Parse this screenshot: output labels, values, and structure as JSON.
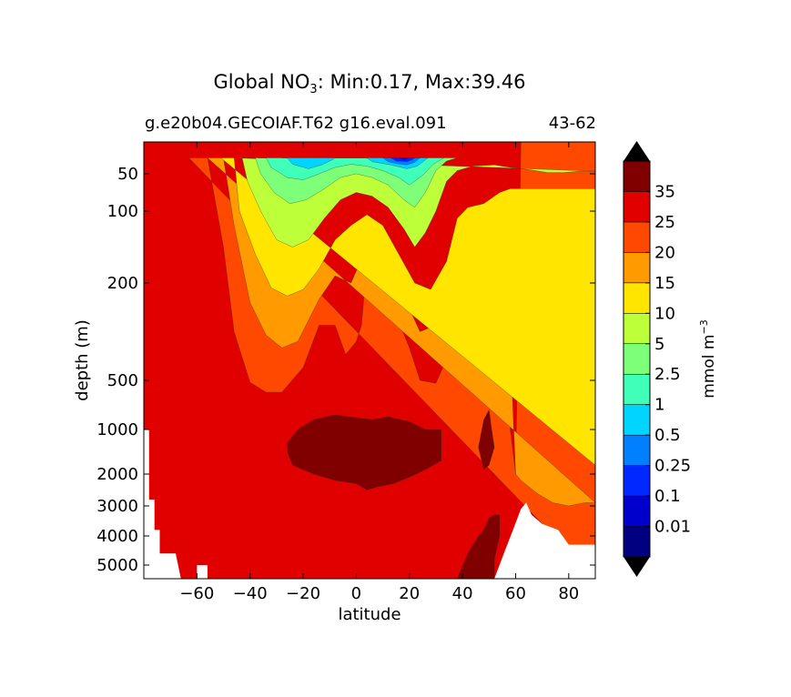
{
  "chart_data": {
    "type": "heatmap",
    "title": {
      "prefix": "Global NO",
      "subscript": "3",
      "suffix": ": Min:0.17, Max:39.46"
    },
    "subtitle_left": "g.e20b04.GECOIAF.T62 g16.eval.091",
    "subtitle_right": "43-62",
    "xlabel": "latitude",
    "ylabel": "depth (m)",
    "xlim": [
      -80,
      90
    ],
    "xticks": [
      -60,
      -40,
      -20,
      0,
      20,
      40,
      60,
      80
    ],
    "xtick_labels": [
      "−60",
      "−40",
      "−20",
      "0",
      "20",
      "40",
      "60",
      "80"
    ],
    "yticks": [
      50,
      100,
      200,
      500,
      1000,
      2000,
      3000,
      4000,
      5000
    ],
    "ytick_labels": [
      "50",
      "100",
      "200",
      "500",
      "1000",
      "2000",
      "3000",
      "4000",
      "5000"
    ],
    "colorbar": {
      "label": "mmol m",
      "label_superscript": "−3",
      "levels": [
        "0.01",
        "0.1",
        "0.25",
        "0.5",
        "1",
        "2.5",
        "5",
        "10",
        "15",
        "20",
        "25",
        "35"
      ],
      "colors": [
        "#000080",
        "#0000cd",
        "#0028ff",
        "#0080ff",
        "#00d4ff",
        "#40ffb8",
        "#7dff7a",
        "#bdff39",
        "#ffe500",
        "#ff9a00",
        "#ff4800",
        "#e00000",
        "#800000"
      ],
      "extend": "both"
    },
    "fill_regions": [
      {
        "level_index": 11,
        "value_range": "25-35",
        "polygon": [
          [
            -80,
            0
          ],
          [
            -72,
            0
          ],
          [
            -40,
            0
          ],
          [
            0,
            0
          ],
          [
            40,
            0
          ],
          [
            90,
            0
          ],
          [
            90,
            5200
          ],
          [
            -80,
            5200
          ]
        ]
      },
      {
        "level_index": 10,
        "value_range": "20-25",
        "polygon": [
          [
            -63,
            25
          ],
          [
            -56,
            25
          ],
          [
            -50,
            150
          ],
          [
            -46,
            350
          ],
          [
            -40,
            520
          ],
          [
            -34,
            620
          ],
          [
            -28,
            620
          ],
          [
            -20,
            460
          ],
          [
            -14,
            330
          ],
          [
            -8,
            330
          ],
          [
            -4,
            420
          ],
          [
            0,
            380
          ],
          [
            2,
            330
          ],
          [
            4,
            170
          ],
          [
            7,
            160
          ],
          [
            12,
            240
          ],
          [
            20,
            400
          ],
          [
            24,
            500
          ],
          [
            30,
            530
          ],
          [
            36,
            400
          ],
          [
            40,
            150
          ],
          [
            46,
            170
          ],
          [
            52,
            200
          ],
          [
            56,
            250
          ],
          [
            58,
            1000
          ],
          [
            60,
            2000
          ],
          [
            62,
            0
          ],
          [
            90,
            0
          ],
          [
            90,
            5200
          ]
        ]
      },
      {
        "level_index": 9,
        "value_range": "15-20",
        "polygon": [
          [
            -56,
            25
          ],
          [
            -50,
            25
          ],
          [
            -46,
            120
          ],
          [
            -40,
            260
          ],
          [
            -34,
            360
          ],
          [
            -28,
            400
          ],
          [
            -22,
            380
          ],
          [
            -14,
            250
          ],
          [
            -8,
            190
          ],
          [
            -2,
            200
          ],
          [
            4,
            150
          ],
          [
            8,
            140
          ],
          [
            12,
            190
          ],
          [
            20,
            280
          ],
          [
            24,
            350
          ],
          [
            30,
            330
          ],
          [
            36,
            170
          ],
          [
            40,
            110
          ],
          [
            46,
            120
          ],
          [
            52,
            150
          ],
          [
            58,
            400
          ],
          [
            60,
            2000
          ],
          [
            62,
            2200
          ],
          [
            68,
            2600
          ],
          [
            74,
            2900
          ],
          [
            80,
            3000
          ],
          [
            86,
            2900
          ],
          [
            90,
            2900
          ]
        ]
      },
      {
        "level_index": 8,
        "value_range": "10-15",
        "polygon": [
          [
            -51,
            25
          ],
          [
            -46,
            25
          ],
          [
            -44,
            100
          ],
          [
            -38,
            160
          ],
          [
            -32,
            215
          ],
          [
            -26,
            240
          ],
          [
            -20,
            220
          ],
          [
            -14,
            180
          ],
          [
            -8,
            140
          ],
          [
            -2,
            120
          ],
          [
            4,
            105
          ],
          [
            10,
            120
          ],
          [
            16,
            160
          ],
          [
            22,
            200
          ],
          [
            28,
            220
          ],
          [
            34,
            170
          ],
          [
            38,
            110
          ],
          [
            42,
            95
          ],
          [
            48,
            90
          ],
          [
            54,
            75
          ],
          [
            58,
            70
          ],
          [
            62,
            70
          ],
          [
            90,
            70
          ],
          [
            90,
            1800
          ]
        ]
      },
      {
        "level_index": 7,
        "value_range": "5-10",
        "polygon": [
          [
            -46,
            25
          ],
          [
            -43,
            25
          ],
          [
            -41,
            60
          ],
          [
            -36,
            100
          ],
          [
            -30,
            140
          ],
          [
            -24,
            150
          ],
          [
            -18,
            140
          ],
          [
            -12,
            110
          ],
          [
            -6,
            85
          ],
          [
            0,
            75
          ],
          [
            6,
            80
          ],
          [
            12,
            95
          ],
          [
            18,
            125
          ],
          [
            22,
            150
          ],
          [
            26,
            130
          ],
          [
            30,
            100
          ],
          [
            34,
            60
          ],
          [
            38,
            45
          ],
          [
            44,
            38
          ],
          [
            52,
            36
          ],
          [
            58,
            40
          ],
          [
            66,
            44
          ],
          [
            72,
            48
          ],
          [
            78,
            48
          ],
          [
            84,
            46
          ],
          [
            90,
            46
          ]
        ]
      },
      {
        "level_index": 6,
        "value_range": "2.5-5",
        "polygon": [
          [
            -41,
            25
          ],
          [
            -38,
            25
          ],
          [
            -36,
            50
          ],
          [
            -31,
            75
          ],
          [
            -25,
            90
          ],
          [
            -19,
            85
          ],
          [
            -12,
            70
          ],
          [
            -6,
            55
          ],
          [
            0,
            50
          ],
          [
            6,
            55
          ],
          [
            12,
            65
          ],
          [
            18,
            85
          ],
          [
            22,
            95
          ],
          [
            26,
            75
          ],
          [
            30,
            45
          ],
          [
            34,
            30
          ],
          [
            38,
            25
          ]
        ]
      },
      {
        "level_index": 5,
        "value_range": "1-2.5",
        "polygon": [
          [
            -37,
            25
          ],
          [
            -34,
            25
          ],
          [
            -32,
            40
          ],
          [
            -26,
            55
          ],
          [
            -20,
            58
          ],
          [
            -14,
            50
          ],
          [
            -8,
            40
          ],
          [
            -2,
            35
          ],
          [
            4,
            38
          ],
          [
            10,
            45
          ],
          [
            16,
            55
          ],
          [
            20,
            65
          ],
          [
            25,
            52
          ],
          [
            29,
            35
          ],
          [
            33,
            25
          ]
        ]
      },
      {
        "level_index": 4,
        "value_range": "0.5-1",
        "polygon": [
          [
            -28,
            25
          ],
          [
            -26,
            25
          ],
          [
            -24,
            35
          ],
          [
            -18,
            42
          ],
          [
            -13,
            36
          ],
          [
            -9,
            28
          ],
          [
            -8,
            25
          ],
          [
            4,
            25
          ],
          [
            6,
            31
          ],
          [
            13,
            36
          ],
          [
            19,
            42
          ],
          [
            23,
            38
          ],
          [
            26,
            28
          ],
          [
            27,
            25
          ]
        ]
      },
      {
        "level_index": 3,
        "value_range": "0.25-0.5",
        "polygon": [
          [
            10,
            25
          ],
          [
            12,
            31
          ],
          [
            15,
            34
          ],
          [
            19,
            36
          ],
          [
            22,
            32
          ],
          [
            24,
            25
          ]
        ]
      },
      {
        "level_index": 2,
        "value_range": "0.1-0.25",
        "polygon": [
          [
            13,
            25
          ],
          [
            15,
            30
          ],
          [
            19,
            31
          ],
          [
            21,
            28
          ],
          [
            22,
            25
          ]
        ]
      },
      {
        "level_index": 1,
        "value_range": "0.01-0.1",
        "polygon": [
          [
            16,
            25
          ],
          [
            18,
            28
          ],
          [
            20,
            25
          ]
        ]
      },
      {
        "level_index": 12,
        "value_range": "> 35",
        "polygon": [
          [
            -26,
            1300
          ],
          [
            -22,
            1000
          ],
          [
            -16,
            900
          ],
          [
            -8,
            850
          ],
          [
            0,
            880
          ],
          [
            6,
            900
          ],
          [
            12,
            870
          ],
          [
            20,
            920
          ],
          [
            26,
            1000
          ],
          [
            32,
            1000
          ],
          [
            32,
            1700
          ],
          [
            26,
            1900
          ],
          [
            20,
            2100
          ],
          [
            14,
            2300
          ],
          [
            8,
            2400
          ],
          [
            4,
            2500
          ],
          [
            0,
            2300
          ],
          [
            -8,
            2200
          ],
          [
            -16,
            2000
          ],
          [
            -24,
            1800
          ],
          [
            -26,
            1500
          ]
        ]
      },
      {
        "level_index": 12,
        "value_range": "> 35",
        "polygon": [
          [
            46,
            1400
          ],
          [
            48,
            900
          ],
          [
            50,
            800
          ],
          [
            51,
            1000
          ],
          [
            52,
            1400
          ],
          [
            50,
            1800
          ],
          [
            48,
            1900
          ]
        ]
      },
      {
        "level_index": 12,
        "value_range": "> 35",
        "polygon": [
          [
            38,
            5200
          ],
          [
            42,
            4600
          ],
          [
            46,
            4000
          ],
          [
            48,
            3800
          ],
          [
            50,
            3400
          ],
          [
            52,
            3300
          ],
          [
            54,
            3300
          ],
          [
            54,
            4000
          ],
          [
            52,
            4800
          ],
          [
            52,
            5200
          ]
        ]
      }
    ],
    "no_data_regions": [
      {
        "polygon": [
          [
            -80,
            1000
          ],
          [
            -78,
            1000
          ],
          [
            -78,
            2800
          ],
          [
            -76,
            2800
          ],
          [
            -76,
            3800
          ],
          [
            -74,
            3800
          ],
          [
            -74,
            4600
          ],
          [
            -68,
            4600
          ],
          [
            -66,
            5200
          ],
          [
            -80,
            5200
          ]
        ]
      },
      {
        "polygon": [
          [
            -60,
            5200
          ],
          [
            -60,
            5000
          ],
          [
            -56,
            5000
          ],
          [
            -56,
            5200
          ]
        ]
      },
      {
        "polygon": [
          [
            52,
            5200
          ],
          [
            56,
            4500
          ],
          [
            59,
            3800
          ],
          [
            62,
            3100
          ],
          [
            64,
            2900
          ],
          [
            66,
            3300
          ],
          [
            70,
            3600
          ],
          [
            76,
            3800
          ],
          [
            80,
            4300
          ],
          [
            90,
            4300
          ],
          [
            90,
            5200
          ]
        ]
      }
    ]
  }
}
